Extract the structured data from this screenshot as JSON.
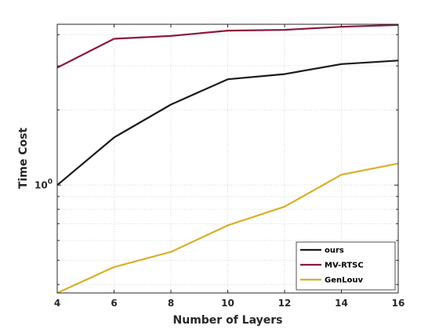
{
  "chart_data": {
    "type": "line",
    "xlabel": "Number of Layers",
    "ylabel": "Time Cost",
    "x": [
      4,
      6,
      8,
      10,
      12,
      14,
      16
    ],
    "xlim": [
      4,
      16
    ],
    "ylim": [
      0.37,
      4.4
    ],
    "y_scale": "log",
    "grid": true,
    "legend_position": "bottom-right",
    "x_ticks": [
      "4",
      "6",
      "8",
      "10",
      "12",
      "14",
      "16"
    ],
    "y_tick": {
      "value": 1,
      "base": "10",
      "exponent": "0"
    },
    "series": [
      {
        "name": "ours",
        "color": "#1a1a1a",
        "values": [
          1.0,
          1.55,
          2.1,
          2.65,
          2.78,
          3.05,
          3.15
        ]
      },
      {
        "name": "MV-RTSC",
        "color": "#8b1a3a",
        "values": [
          2.95,
          3.85,
          3.95,
          4.15,
          4.18,
          4.3,
          4.37
        ]
      },
      {
        "name": "GenLouv",
        "color": "#d8b02a",
        "values": [
          0.37,
          0.47,
          0.54,
          0.69,
          0.82,
          1.1,
          1.22
        ]
      }
    ]
  }
}
